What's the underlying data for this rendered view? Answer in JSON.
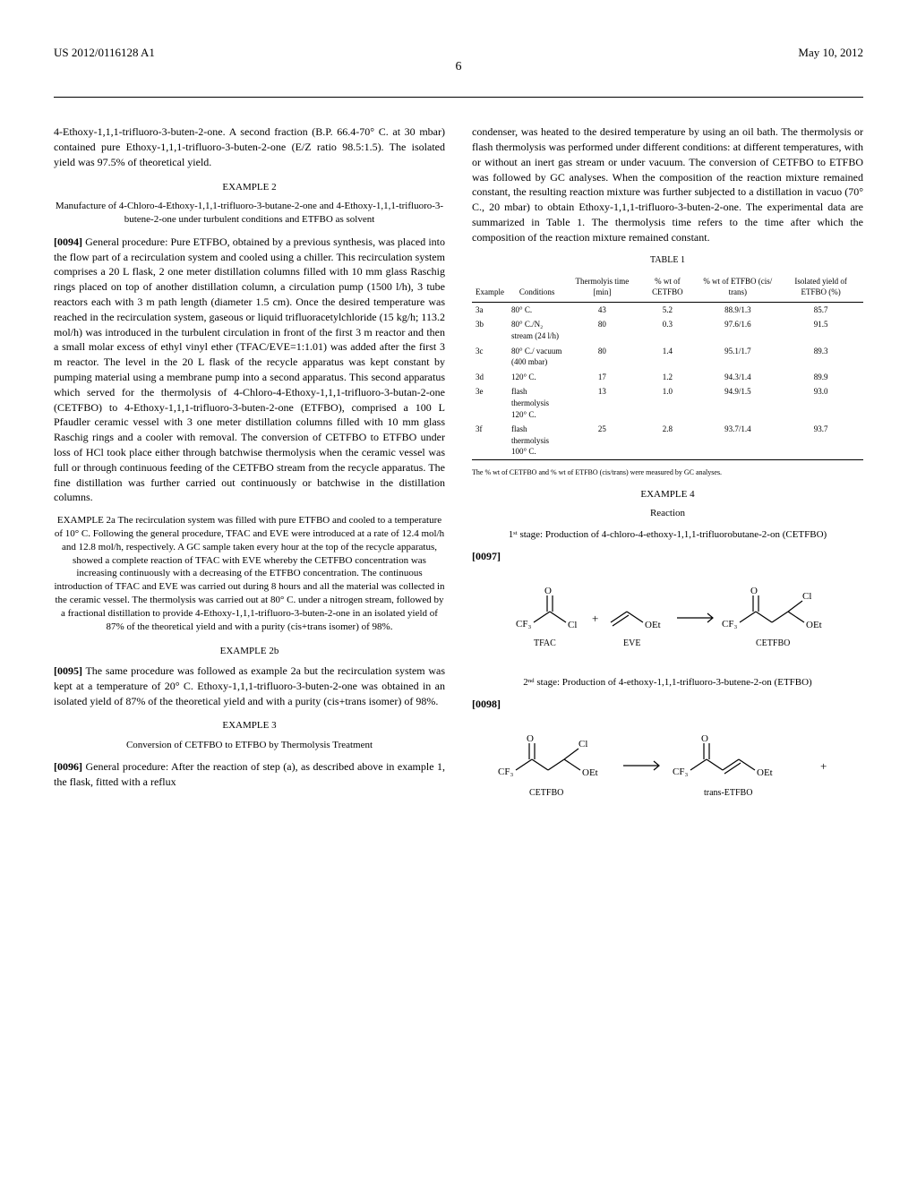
{
  "header": {
    "docNumber": "US 2012/0116128 A1",
    "date": "May 10, 2012",
    "pageNum": "6"
  },
  "col1": {
    "p1": "4-Ethoxy-1,1,1-trifluoro-3-buten-2-one. A second fraction (B.P. 66.4-70° C. at 30 mbar) contained pure Ethoxy-1,1,1-trifluoro-3-buten-2-one (E/Z ratio 98.5:1.5). The isolated yield was 97.5% of theoretical yield.",
    "ex2Title": "EXAMPLE 2",
    "ex2Sub": "Manufacture of 4-Chloro-4-Ethoxy-1,1,1-trifluoro-3-butane-2-one and 4-Ethoxy-1,1,1-trifluoro-3-butene-2-one under turbulent conditions and ETFBO as solvent",
    "p0094num": "[0094]",
    "p0094": "    General procedure: Pure ETFBO, obtained by a previous synthesis, was placed into the flow part of a recirculation system and cooled using a chiller. This recirculation system comprises a 20 L flask, 2 one meter distillation columns filled with 10 mm glass Raschig rings placed on top of another distillation column, a circulation pump (1500 l/h), 3 tube reactors each with 3 m path length (diameter 1.5 cm). Once the desired temperature was reached in the recirculation system, gaseous or liquid trifluoracetylchloride (15 kg/h; 113.2 mol/h) was introduced in the turbulent circulation in front of the first 3 m reactor and then a small molar excess of ethyl vinyl ether (TFAC/EVE=1:1.01) was added after the first 3 m reactor. The level in the 20 L flask of the recycle apparatus was kept constant by pumping material using a membrane pump into a second apparatus. This second apparatus which served for the thermolysis of 4-Chloro-4-Ethoxy-1,1,1-trifluoro-3-butan-2-one (CETFBO) to 4-Ethoxy-1,1,1-trifluoro-3-buten-2-one (ETFBO), comprised a 100 L Pfaudler ceramic vessel with 3 one meter distillation columns filled with 10 mm glass Raschig rings and a cooler with removal. The conversion of CETFBO to ETFBO under loss of HCl took place either through batchwise thermolysis when the ceramic vessel was full or through continuous feeding of the CETFBO stream from the recycle apparatus. The fine distillation was further carried out continuously or batchwise in the distillation columns.",
    "ex2aBlock": "EXAMPLE 2a The recirculation system was filled with pure ETFBO and cooled to a temperature of 10° C. Following the general procedure, TFAC and EVE were introduced at a rate of 12.4 mol/h and 12.8 mol/h, respectively. A GC sample taken every hour at the top of the recycle apparatus, showed a complete reaction of TFAC with EVE whereby the CETFBO concentration was increasing continuously with a decreasing of the ETFBO concentration. The continuous introduction of TFAC and EVE was carried out during 8 hours and all the material was collected in the ceramic vessel. The thermolysis was carried out at 80° C. under a nitrogen stream, followed by a fractional distillation to provide 4-Ethoxy-1,1,1-trifluoro-3-buten-2-one in an isolated yield of 87% of the theoretical yield and with a purity (cis+trans isomer) of 98%.",
    "ex2bTitle": "EXAMPLE 2b",
    "p0095num": "[0095]",
    "p0095": "    The same procedure was followed as example 2a but the recirculation system was kept at a temperature of 20° C. Ethoxy-1,1,1-trifluoro-3-buten-2-one was obtained in an isolated yield of 87% of the theoretical yield and with a purity (cis+trans isomer) of 98%.",
    "ex3Title": "EXAMPLE 3",
    "ex3Sub": "Conversion of CETFBO to ETFBO by Thermolysis Treatment",
    "p0096num": "[0096]",
    "p0096": "    General procedure: After the reaction of step (a), as described above in example 1, the flask, fitted with a reflux"
  },
  "col2": {
    "p1": "condenser, was heated to the desired temperature by using an oil bath. The thermolysis or flash thermolysis was performed under different conditions: at different temperatures, with or without an inert gas stream or under vacuum. The conversion of CETFBO to ETFBO was followed by GC analyses. When the composition of the reaction mixture remained constant, the resulting reaction mixture was further subjected to a distillation in vacuo (70° C., 20 mbar) to obtain Ethoxy-1,1,1-trifluoro-3-buten-2-one. The experimental data are summarized in Table 1. The thermolysis time refers to the time after which the composition of the reaction mixture remained constant.",
    "tableCaption": "TABLE 1",
    "tableHeaders": [
      "Example",
      "Conditions",
      "Thermolyis time [min]",
      "% wt of CETFBO",
      "% wt of ETFBO (cis/ trans)",
      "Isolated yield of ETFBO (%)"
    ],
    "tableRows": [
      [
        "3a",
        "80° C.",
        "43",
        "5.2",
        "88.9/1.3",
        "85.7"
      ],
      [
        "3b",
        "80° C./N₂ stream (24 l/h)",
        "80",
        "0.3",
        "97.6/1.6",
        "91.5"
      ],
      [
        "3c",
        "80° C./ vacuum (400 mbar)",
        "80",
        "1.4",
        "95.1/1.7",
        "89.3"
      ],
      [
        "3d",
        "120° C.",
        "17",
        "1.2",
        "94.3/1.4",
        "89.9"
      ],
      [
        "3e",
        "flash thermolysis 120° C.",
        "13",
        "1.0",
        "94.9/1.5",
        "93.0"
      ],
      [
        "3f",
        "flash thermolysis 100° C.",
        "25",
        "2.8",
        "93.7/1.4",
        "93.7"
      ]
    ],
    "tableNote": "The % wt of CETFBO and % wt of ETFBO (cis/trans) were measured by GC analyses.",
    "ex4Title": "EXAMPLE 4",
    "ex4Sub": "Reaction",
    "stage1": "1ˢᵗ stage: Production of 4-chloro-4-ethoxy-1,1,1-trifluorobutane-2-on (CETFBO)",
    "p0097num": "[0097]",
    "stage2": "2ⁿᵈ stage: Production of 4-ethoxy-1,1,1-trifluoro-3-butene-2-on (ETFBO)",
    "p0098num": "[0098]",
    "chem1Labels": {
      "a": "TFAC",
      "b": "EVE",
      "c": "CETFBO"
    },
    "chem2Labels": {
      "a": "CETFBO",
      "b": "trans-ETFBO"
    }
  },
  "chemStyle": {
    "strokeColor": "#000000",
    "strokeWidth": 1.2,
    "fontSize": 11,
    "labelFontSize": 10
  }
}
